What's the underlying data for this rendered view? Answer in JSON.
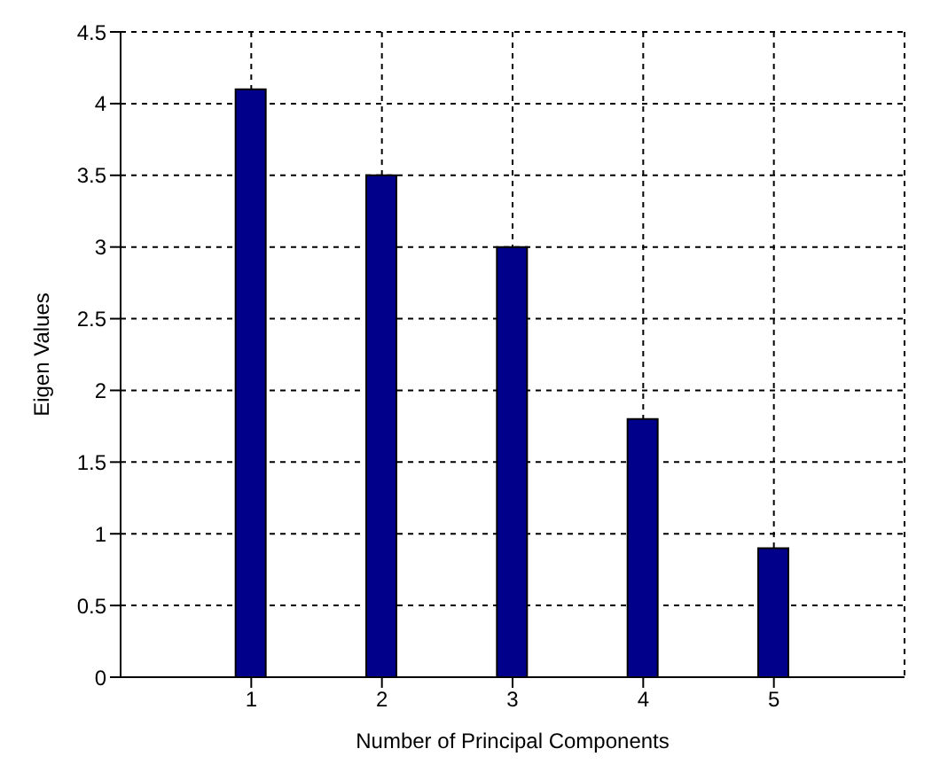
{
  "chart_data": {
    "type": "bar",
    "xlabel": "Number of Principal Components",
    "ylabel": "Eigen Values",
    "x": [
      1,
      2,
      3,
      4,
      5
    ],
    "values": [
      4.1,
      3.5,
      3.0,
      1.8,
      0.9
    ],
    "color": "#00008b",
    "xlim": [
      0,
      6
    ],
    "xticks": [
      1,
      2,
      3,
      4,
      5
    ],
    "ylim": [
      0,
      4.5
    ],
    "yticks": [
      0,
      0.5,
      1,
      1.5,
      2,
      2.5,
      3,
      3.5,
      4,
      4.5
    ],
    "grid": true
  }
}
